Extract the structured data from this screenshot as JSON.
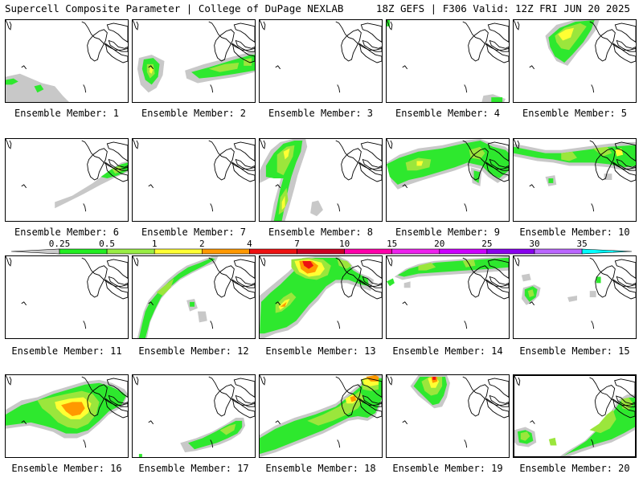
{
  "header": {
    "left": "Supercell Composite Parameter | College of DuPage NEXLAB",
    "right": "18Z GEFS | F306 Valid: 12Z FRI JUN 20 2025"
  },
  "legend": {
    "labels": [
      "0.25",
      "0.5",
      "1",
      "2",
      "4",
      "7",
      "10",
      "15",
      "20",
      "25",
      "30",
      "35"
    ],
    "colors": [
      "#cccccc",
      "#22ee22",
      "#99ee44",
      "#ffff33",
      "#ff9900",
      "#ee1111",
      "#cc0022",
      "#ff00aa",
      "#ee22ee",
      "#cc00ff",
      "#8800ee",
      "#bb66ff",
      "#00ffff"
    ]
  },
  "field_colors": {
    "gray": "#c8c8c8",
    "green": "#2ee82e",
    "lightgreen": "#9be63c",
    "yellow": "#ffff33",
    "orange": "#ff9900",
    "red": "#ee1111"
  },
  "members": [
    {
      "label": "Ensemble Member: 1"
    },
    {
      "label": "Ensemble Member: 2"
    },
    {
      "label": "Ensemble Member: 3"
    },
    {
      "label": "Ensemble Member: 4"
    },
    {
      "label": "Ensemble Member: 5"
    },
    {
      "label": "Ensemble Member: 6"
    },
    {
      "label": "Ensemble Member: 7"
    },
    {
      "label": "Ensemble Member: 8"
    },
    {
      "label": "Ensemble Member: 9"
    },
    {
      "label": "Ensemble Member: 10"
    },
    {
      "label": "Ensemble Member: 11"
    },
    {
      "label": "Ensemble Member: 12"
    },
    {
      "label": "Ensemble Member: 13"
    },
    {
      "label": "Ensemble Member: 14"
    },
    {
      "label": "Ensemble Member: 15"
    },
    {
      "label": "Ensemble Member: 16"
    },
    {
      "label": "Ensemble Member: 17"
    },
    {
      "label": "Ensemble Member: 18"
    },
    {
      "label": "Ensemble Member: 19"
    },
    {
      "label": "Ensemble Member: 20",
      "selected": true
    }
  ]
}
